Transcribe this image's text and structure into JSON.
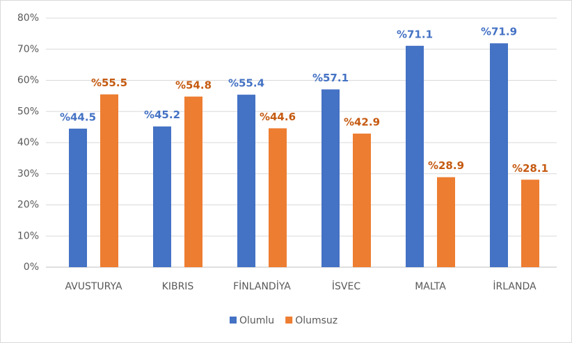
{
  "chart_data": {
    "type": "bar",
    "categories": [
      "AVUSTURYA",
      "KIBRIS",
      "FİNLANDİYA",
      "İSVEC",
      "MALTA",
      "İRLANDA"
    ],
    "series": [
      {
        "name": "Olumlu",
        "color": "#4472c4",
        "values": [
          44.5,
          45.2,
          55.4,
          57.1,
          71.1,
          71.9
        ],
        "value_labels": [
          "%44.5",
          "%45.2",
          "%55.4",
          "%57.1",
          "%71.1",
          "%71.9"
        ]
      },
      {
        "name": "Olumsuz",
        "color": "#ed7d31",
        "values": [
          55.5,
          54.8,
          44.6,
          42.9,
          28.9,
          28.1
        ],
        "value_labels": [
          "%55.5",
          "%54.8",
          "%44.6",
          "%42.9",
          "%28.9",
          "%28.1"
        ]
      }
    ],
    "ylim": [
      0,
      80
    ],
    "yticks": [
      {
        "value": 0,
        "label": "0%"
      },
      {
        "value": 10,
        "label": "10%"
      },
      {
        "value": 20,
        "label": "20%"
      },
      {
        "value": 30,
        "label": "30%"
      },
      {
        "value": 40,
        "label": "40%"
      },
      {
        "value": 50,
        "label": "50%"
      },
      {
        "value": 60,
        "label": "60%"
      },
      {
        "value": 70,
        "label": "70%"
      },
      {
        "value": 80,
        "label": "80%"
      }
    ],
    "grid": true,
    "legend": "bottom"
  }
}
